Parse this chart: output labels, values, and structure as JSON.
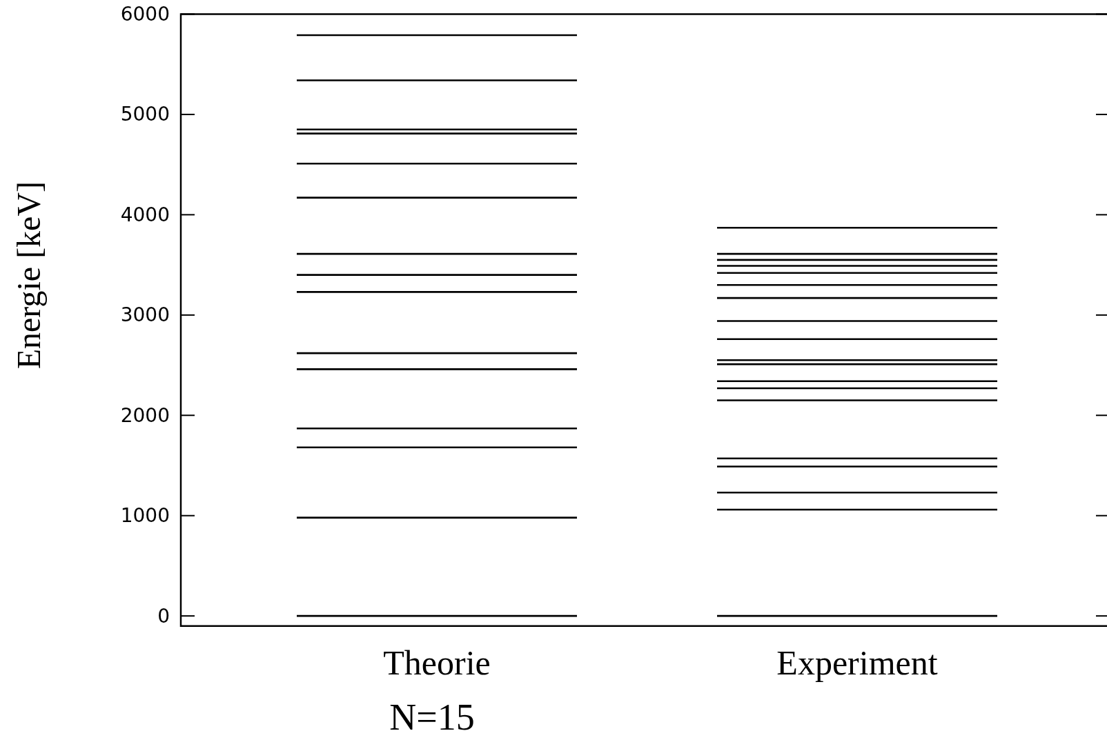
{
  "chart_data": {
    "type": "line",
    "ylabel": "Energie [keV]",
    "categories": [
      null,
      "Theorie",
      null,
      null,
      "Experiment",
      null
    ],
    "ylim": [
      -100,
      6000
    ],
    "yticks": [
      0,
      1000,
      2000,
      3000,
      4000,
      5000,
      6000
    ],
    "series": [
      {
        "color": "#000000",
        "values": [
          0,
          0,
          0,
          null,
          null,
          null
        ]
      },
      {
        "color": "#000000",
        "values": [
          980,
          980,
          980,
          null,
          null,
          null
        ]
      },
      {
        "color": "#000000",
        "values": [
          1680,
          1680,
          1680,
          null,
          null,
          null
        ]
      },
      {
        "color": "#000000",
        "values": [
          1870,
          1870,
          1870,
          null,
          null,
          null
        ]
      },
      {
        "color": "#000000",
        "values": [
          2460,
          2460,
          2460,
          null,
          null,
          null
        ]
      },
      {
        "color": "#000000",
        "values": [
          2620,
          2620,
          2620,
          null,
          null,
          null
        ]
      },
      {
        "color": "#000000",
        "values": [
          3230,
          3230,
          3230,
          null,
          null,
          null
        ]
      },
      {
        "color": "#000000",
        "values": [
          3400,
          3400,
          3400,
          null,
          null,
          null
        ]
      },
      {
        "color": "#000000",
        "values": [
          3610,
          3610,
          3610,
          null,
          null,
          null
        ]
      },
      {
        "color": "#000000",
        "values": [
          4170,
          4170,
          4170,
          null,
          null,
          null
        ]
      },
      {
        "color": "#000000",
        "values": [
          4510,
          4510,
          4510,
          null,
          null,
          null
        ]
      },
      {
        "color": "#000000",
        "values": [
          4810,
          4810,
          4810,
          null,
          null,
          null
        ]
      },
      {
        "color": "#000000",
        "values": [
          4850,
          4850,
          4850,
          null,
          null,
          null
        ]
      },
      {
        "color": "#000000",
        "values": [
          5340,
          5340,
          5340,
          null,
          null,
          null
        ]
      },
      {
        "color": "#000000",
        "values": [
          5790,
          5790,
          5790,
          null,
          null,
          null
        ]
      },
      {
        "color": "#000000",
        "values": [
          null,
          null,
          null,
          0,
          0,
          0
        ]
      },
      {
        "color": "#000000",
        "values": [
          null,
          null,
          null,
          1060,
          1060,
          1060
        ]
      },
      {
        "color": "#000000",
        "values": [
          null,
          null,
          null,
          1230,
          1230,
          1230
        ]
      },
      {
        "color": "#000000",
        "values": [
          null,
          null,
          null,
          1490,
          1490,
          1490
        ]
      },
      {
        "color": "#000000",
        "values": [
          null,
          null,
          null,
          1570,
          1570,
          1570
        ]
      },
      {
        "color": "#000000",
        "values": [
          null,
          null,
          null,
          2150,
          2150,
          2150
        ]
      },
      {
        "color": "#000000",
        "values": [
          null,
          null,
          null,
          2270,
          2270,
          2270
        ]
      },
      {
        "color": "#000000",
        "values": [
          null,
          null,
          null,
          2340,
          2340,
          2340
        ]
      },
      {
        "color": "#000000",
        "values": [
          null,
          null,
          null,
          2510,
          2510,
          2510
        ]
      },
      {
        "color": "#000000",
        "values": [
          null,
          null,
          null,
          2550,
          2550,
          2550
        ]
      },
      {
        "color": "#000000",
        "values": [
          null,
          null,
          null,
          2760,
          2760,
          2760
        ]
      },
      {
        "color": "#000000",
        "values": [
          null,
          null,
          null,
          2940,
          2940,
          2940
        ]
      },
      {
        "color": "#000000",
        "values": [
          null,
          null,
          null,
          3170,
          3170,
          3170
        ]
      },
      {
        "color": "#000000",
        "values": [
          null,
          null,
          null,
          3300,
          3300,
          3300
        ]
      },
      {
        "color": "#000000",
        "values": [
          null,
          null,
          null,
          3420,
          3420,
          3420
        ]
      },
      {
        "color": "#000000",
        "values": [
          null,
          null,
          null,
          3490,
          3490,
          3490
        ]
      },
      {
        "color": "#000000",
        "values": [
          null,
          null,
          null,
          3550,
          3550,
          3550
        ]
      },
      {
        "color": "#000000",
        "values": [
          null,
          null,
          null,
          3610,
          3610,
          3610
        ]
      },
      {
        "color": "#000000",
        "values": [
          null,
          null,
          null,
          3870,
          3870,
          3870
        ]
      }
    ],
    "annotations": [
      "N=15"
    ]
  }
}
